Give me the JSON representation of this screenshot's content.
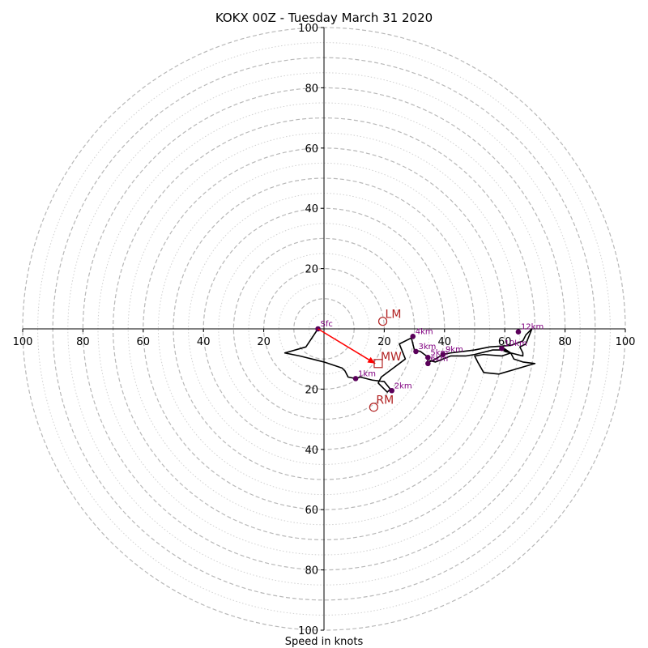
{
  "chart_data": {
    "type": "hodograph",
    "title": "KOKX 00Z - Tuesday March 31 2020",
    "xlabel": "Speed in knots",
    "units": "knots",
    "range": [
      -100,
      100
    ],
    "ring_radii_dashed": [
      10,
      20,
      30,
      40,
      50,
      60,
      70,
      80,
      90,
      100
    ],
    "ring_radii_dotted": [
      5,
      15,
      25,
      35,
      45,
      55,
      65,
      75,
      85,
      95
    ],
    "ticks": {
      "x_negative": [
        100,
        80,
        60,
        40,
        20
      ],
      "x_positive": [
        20,
        40,
        60,
        80,
        100
      ],
      "y_positive": [
        100,
        80,
        60,
        40,
        20
      ],
      "y_negative": [
        20,
        40,
        60,
        80,
        100
      ],
      "x_negative_labels": [
        "100",
        "80",
        "60",
        "40",
        "20"
      ],
      "x_positive_labels": [
        "20",
        "40",
        "60",
        "80",
        "100"
      ],
      "y_positive_labels": [
        "100",
        "80",
        "60",
        "40",
        "20"
      ],
      "y_negative_labels": [
        "20",
        "40",
        "60",
        "80",
        "100"
      ]
    },
    "trace": [
      [
        -2,
        0
      ],
      [
        -6,
        -6
      ],
      [
        -13,
        -8
      ],
      [
        -8,
        -9
      ],
      [
        -4,
        -10
      ],
      [
        0,
        -11
      ],
      [
        3,
        -12
      ],
      [
        6,
        -13
      ],
      [
        7,
        -14
      ],
      [
        8,
        -16
      ],
      [
        10.5,
        -16.5
      ],
      [
        12,
        -16
      ],
      [
        16,
        -17
      ],
      [
        20,
        -17.5
      ],
      [
        22,
        -20
      ],
      [
        21,
        -21
      ],
      [
        18,
        -18
      ],
      [
        19,
        -16
      ],
      [
        23,
        -13
      ],
      [
        27,
        -10
      ],
      [
        25,
        -5
      ],
      [
        29,
        -3
      ],
      [
        30,
        -7
      ],
      [
        32,
        -7.5
      ],
      [
        34,
        -9
      ],
      [
        35,
        -9.5
      ],
      [
        34,
        -11.5
      ],
      [
        37,
        -10
      ],
      [
        39.5,
        -8.5
      ],
      [
        42,
        -8
      ],
      [
        46,
        -7.5
      ],
      [
        50,
        -7
      ],
      [
        55,
        -6
      ],
      [
        62,
        -5.5
      ],
      [
        66,
        -4
      ],
      [
        67,
        -2
      ],
      [
        69,
        0
      ],
      [
        67,
        -5
      ],
      [
        65,
        -6
      ],
      [
        66,
        -8
      ],
      [
        66,
        -9
      ],
      [
        60,
        -7.5
      ],
      [
        59,
        -6
      ],
      [
        62,
        -8
      ],
      [
        63,
        -10
      ],
      [
        66,
        -11
      ],
      [
        70,
        -11.5
      ],
      [
        58,
        -15
      ],
      [
        53,
        -14.5
      ],
      [
        51,
        -11
      ],
      [
        50,
        -9
      ],
      [
        53,
        -8.5
      ],
      [
        59,
        -9
      ],
      [
        62,
        -8
      ],
      [
        60,
        -7
      ],
      [
        56,
        -7
      ],
      [
        50,
        -8.5
      ],
      [
        47,
        -9
      ],
      [
        42,
        -9
      ],
      [
        37,
        -11
      ],
      [
        35,
        -10.5
      ]
    ],
    "heights": [
      {
        "label": "Sfc",
        "u": -2,
        "v": 0
      },
      {
        "label": "1km",
        "u": 10.5,
        "v": -16.5
      },
      {
        "label": "2km",
        "u": 22.5,
        "v": -20.5
      },
      {
        "label": "3km",
        "u": 30.5,
        "v": -7.5
      },
      {
        "label": "4km",
        "u": 29.5,
        "v": -2.5
      },
      {
        "label": "5km",
        "u": 34.5,
        "v": -9.5
      },
      {
        "label": "6km",
        "u": 34.5,
        "v": -11.5
      },
      {
        "label": "9km",
        "u": 39.5,
        "v": -8.5
      },
      {
        "label": "10km",
        "u": 59,
        "v": -6.5
      },
      {
        "label": "12km",
        "u": 64.5,
        "v": -1
      }
    ],
    "storm_motion": [
      {
        "label": "LM",
        "u": 19.5,
        "v": 2.5,
        "marker": "circle"
      },
      {
        "label": "MW",
        "u": 18,
        "v": -11.5,
        "marker": "square"
      },
      {
        "label": "RM",
        "u": 16.5,
        "v": -26,
        "marker": "circle"
      }
    ],
    "mean_wind_arrow": {
      "from": [
        -2,
        0
      ],
      "to": [
        17,
        -11.5
      ]
    },
    "colors": {
      "trace": "#000000",
      "height_marker": "#5a005a",
      "height_label": "#800080",
      "storm_motion": "#b22222",
      "arrow": "#ff0000",
      "grid": "#b8b8b8"
    }
  }
}
